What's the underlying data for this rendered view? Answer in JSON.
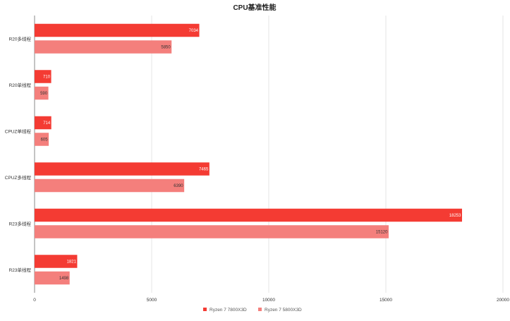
{
  "chart_data": {
    "type": "bar",
    "orientation": "horizontal",
    "title": "CPU基准性能",
    "categories": [
      "R20多线程",
      "R20单线程",
      "CPUZ单线程",
      "CPUZ多线程",
      "R23多线程",
      "R23单线程"
    ],
    "series": [
      {
        "name": "Ryzen 7 7800X3D",
        "color": "#f43b33",
        "label_color": "#ffffff",
        "values": [
          7034,
          710,
          714,
          7465,
          18253,
          1821
        ]
      },
      {
        "name": "Ryzen 7 5800X3D",
        "color": "#f47f7c",
        "label_color": "#333333",
        "values": [
          5850,
          590,
          605,
          6390,
          15120,
          1498
        ]
      }
    ],
    "xlim": [
      0,
      20000
    ],
    "xticks": [
      0,
      5000,
      10000,
      15000,
      20000
    ],
    "grid": true,
    "legend": "bottom-center"
  }
}
